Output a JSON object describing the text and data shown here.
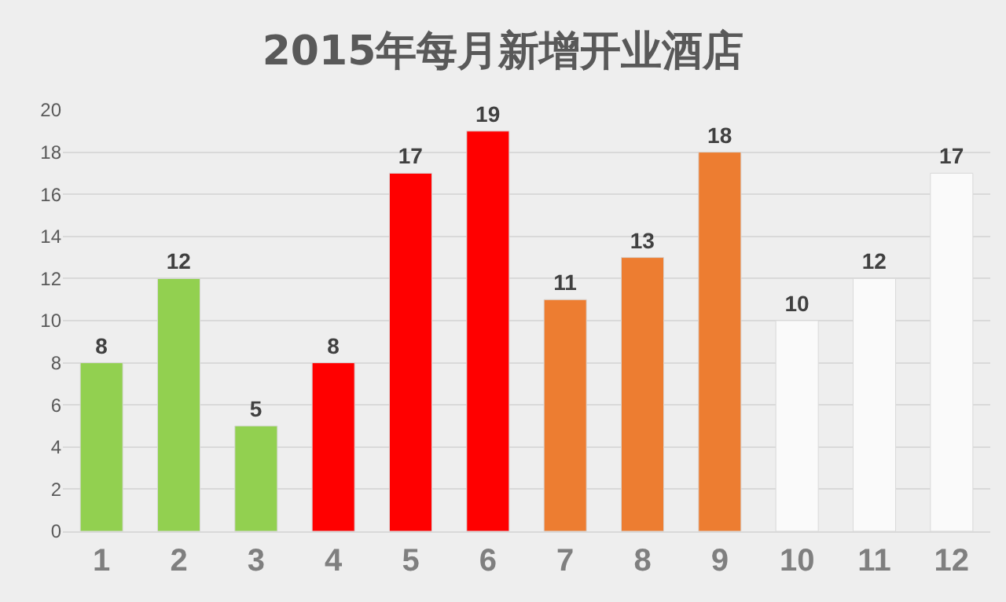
{
  "chart_data": {
    "type": "bar",
    "title": "2015年每月新增开业酒店",
    "categories": [
      "1",
      "2",
      "3",
      "4",
      "5",
      "6",
      "7",
      "8",
      "9",
      "10",
      "11",
      "12"
    ],
    "values": [
      8,
      12,
      5,
      8,
      17,
      19,
      11,
      13,
      18,
      10,
      12,
      17
    ],
    "colors": [
      "#92d050",
      "#92d050",
      "#92d050",
      "#ff0000",
      "#ff0000",
      "#ff0000",
      "#ed7d31",
      "#ed7d31",
      "#ed7d31",
      "#fafafa",
      "#fafafa",
      "#fafafa"
    ],
    "ylim": [
      0,
      20
    ],
    "yticks": [
      0,
      2,
      4,
      6,
      8,
      10,
      12,
      14,
      16,
      18,
      20
    ],
    "grid": "y",
    "data_labels": true,
    "legend": false
  }
}
